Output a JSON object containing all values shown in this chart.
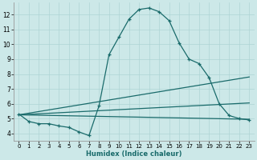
{
  "xlabel": "Humidex (Indice chaleur)",
  "background_color": "#cce8e8",
  "line_color": "#1a6b6b",
  "grid_color": "#aed4d4",
  "xlim": [
    -0.5,
    23.5
  ],
  "ylim": [
    3.5,
    12.8
  ],
  "xticks": [
    0,
    1,
    2,
    3,
    4,
    5,
    6,
    7,
    8,
    9,
    10,
    11,
    12,
    13,
    14,
    15,
    16,
    17,
    18,
    19,
    20,
    21,
    22,
    23
  ],
  "yticks": [
    4,
    5,
    6,
    7,
    8,
    9,
    10,
    11,
    12
  ],
  "main_line": {
    "x": [
      0,
      1,
      2,
      3,
      4,
      5,
      6,
      7,
      8,
      9,
      10,
      11,
      12,
      13,
      14,
      15,
      16,
      17,
      18,
      19,
      20,
      21,
      22,
      23
    ],
    "y": [
      5.3,
      4.8,
      4.65,
      4.65,
      4.5,
      4.4,
      4.1,
      3.85,
      5.85,
      9.3,
      10.5,
      11.7,
      12.35,
      12.45,
      12.2,
      11.6,
      10.1,
      9.0,
      8.7,
      7.75,
      6.0,
      5.2,
      5.0,
      4.9
    ]
  },
  "straight_lines": [
    {
      "x": [
        0,
        23
      ],
      "y": [
        5.25,
        4.95
      ]
    },
    {
      "x": [
        0,
        23
      ],
      "y": [
        5.25,
        7.8
      ]
    },
    {
      "x": [
        0,
        23
      ],
      "y": [
        5.25,
        6.05
      ]
    }
  ]
}
